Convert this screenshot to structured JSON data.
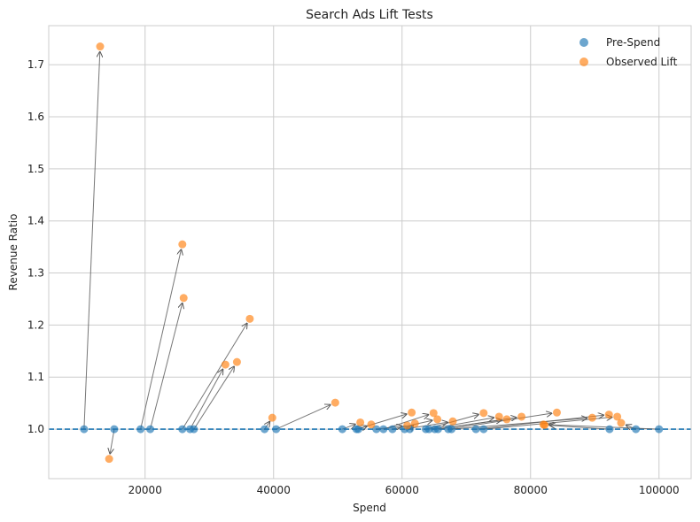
{
  "chart_data": {
    "type": "scatter",
    "title": "Search Ads Lift Tests",
    "xlabel": "Spend",
    "ylabel": "Revenue Ratio",
    "xlim": [
      5000,
      105000
    ],
    "ylim": [
      0.905,
      1.775
    ],
    "xticks": [
      20000,
      40000,
      60000,
      80000,
      100000
    ],
    "yticks": [
      1.0,
      1.1,
      1.2,
      1.3,
      1.4,
      1.5,
      1.6,
      1.7
    ],
    "grid": true,
    "legend_position": "top-right",
    "baseline": {
      "y": 1.0,
      "style": "dashed",
      "color": "#1f77b4"
    },
    "series": [
      {
        "name": "Pre-Spend",
        "color": "#1f77b4"
      },
      {
        "name": "Observed Lift",
        "color": "#ff7f0e"
      }
    ],
    "pairs": [
      {
        "pre": [
          10500,
          1.0
        ],
        "post": [
          13000,
          1.735
        ]
      },
      {
        "pre": [
          15200,
          1.0
        ],
        "post": [
          14400,
          0.943
        ]
      },
      {
        "pre": [
          19300,
          1.0
        ],
        "post": [
          25800,
          1.355
        ]
      },
      {
        "pre": [
          20800,
          1.0
        ],
        "post": [
          26000,
          1.252
        ]
      },
      {
        "pre": [
          25800,
          1.0
        ],
        "post": [
          36300,
          1.212
        ]
      },
      {
        "pre": [
          27000,
          1.0
        ],
        "post": [
          32500,
          1.124
        ]
      },
      {
        "pre": [
          27600,
          1.0
        ],
        "post": [
          34300,
          1.129
        ]
      },
      {
        "pre": [
          38600,
          1.0
        ],
        "post": [
          39800,
          1.022
        ]
      },
      {
        "pre": [
          40400,
          1.0
        ],
        "post": [
          49600,
          1.051
        ]
      },
      {
        "pre": [
          50700,
          1.0
        ],
        "post": [
          53500,
          1.013
        ]
      },
      {
        "pre": [
          52900,
          1.0
        ],
        "post": [
          61500,
          1.032
        ]
      },
      {
        "pre": [
          53200,
          1.0
        ],
        "post": [
          55200,
          1.009
        ]
      },
      {
        "pre": [
          56000,
          1.0
        ],
        "post": [
          60800,
          1.007
        ]
      },
      {
        "pre": [
          57100,
          1.0
        ],
        "post": [
          64900,
          1.031
        ]
      },
      {
        "pre": [
          58500,
          1.0
        ],
        "post": [
          65500,
          1.019
        ]
      },
      {
        "pre": [
          60400,
          1.0
        ],
        "post": [
          67900,
          1.015
        ]
      },
      {
        "pre": [
          61200,
          1.0
        ],
        "post": [
          62000,
          1.011
        ]
      },
      {
        "pre": [
          63700,
          1.0
        ],
        "post": [
          72700,
          1.031
        ]
      },
      {
        "pre": [
          64200,
          1.0
        ],
        "post": [
          75100,
          1.024
        ]
      },
      {
        "pre": [
          65100,
          1.0
        ],
        "post": [
          76300,
          1.019
        ]
      },
      {
        "pre": [
          65600,
          1.0
        ],
        "post": [
          78600,
          1.024
        ]
      },
      {
        "pre": [
          67200,
          1.0
        ],
        "post": [
          84100,
          1.032
        ]
      },
      {
        "pre": [
          67700,
          1.0
        ],
        "post": [
          89600,
          1.022
        ]
      },
      {
        "pre": [
          71500,
          1.0
        ],
        "post": [
          92200,
          1.028
        ]
      },
      {
        "pre": [
          72700,
          1.0
        ],
        "post": [
          93500,
          1.024
        ]
      },
      {
        "pre": [
          92300,
          1.0
        ],
        "post": [
          82200,
          1.008
        ]
      },
      {
        "pre": [
          96400,
          1.0
        ],
        "post": [
          94100,
          1.012
        ]
      },
      {
        "pre": [
          100000,
          1.0
        ],
        "post": [
          82000,
          1.009
        ]
      }
    ]
  }
}
